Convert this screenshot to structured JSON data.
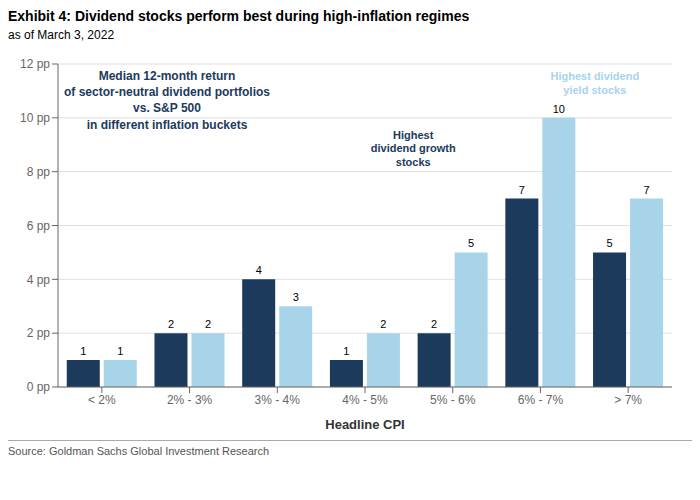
{
  "chart_data": {
    "type": "bar",
    "title": "Exhibit 4: Dividend stocks perform best during high-inflation regimes",
    "subtitle": "as of March 3, 2022",
    "categories": [
      "< 2%",
      "2% - 3%",
      "3% - 4%",
      "4% - 5%",
      "5% - 6%",
      "6% - 7%",
      "> 7%"
    ],
    "series": [
      {
        "color": "#1b3a5c",
        "values": [
          1,
          2,
          4,
          1,
          2,
          7,
          5
        ]
      },
      {
        "color": "#a8d4ea",
        "values": [
          1,
          2,
          3,
          2,
          5,
          10,
          7
        ]
      }
    ],
    "xlabel": "Headline CPI",
    "ylim": [
      0,
      12
    ],
    "yticks": [
      {
        "value": 0,
        "label": "0 pp"
      },
      {
        "value": 2,
        "label": "2 pp"
      },
      {
        "value": 4,
        "label": "4 pp"
      },
      {
        "value": 6,
        "label": "6 pp"
      },
      {
        "value": 8,
        "label": "8 pp"
      },
      {
        "value": 10,
        "label": "10 pp"
      },
      {
        "value": 12,
        "label": "12 pp"
      }
    ],
    "grid": true,
    "data_labels": true,
    "annotations": [
      "Median 12-month return\nof sector-neutral dividend portfolios\nvs. S&P 500\nin different inflation buckets",
      "Highest\ndividend growth\nstocks",
      "Highest dividend\nyield stocks"
    ],
    "source": "Source: Goldman Sachs Global Investment Research"
  }
}
